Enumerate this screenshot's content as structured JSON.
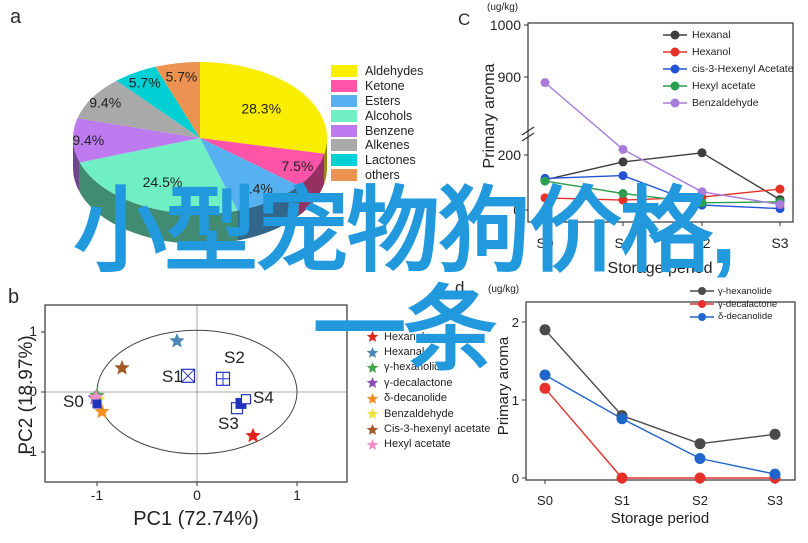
{
  "watermark": {
    "line1": "小型宠物狗价格,",
    "line2": "一条",
    "color": "#2299DD"
  },
  "panel_a": {
    "label": "a"
  },
  "panel_b": {
    "label": "b",
    "xlabel": "PC1 (72.74%)",
    "ylabel": "PC2 (18.97%)",
    "legend": [
      {
        "label": "Hexanol",
        "color": "#E0251B"
      },
      {
        "label": "Hexanal",
        "color": "#4A87B8"
      },
      {
        "label": "γ-hexanolide",
        "color": "#46A546"
      },
      {
        "label": "γ-decalactone",
        "color": "#8A4FB0"
      },
      {
        "label": "δ-decanolide",
        "color": "#F2901D"
      },
      {
        "label": "Benzaldehyde",
        "color": "#F2E33A"
      },
      {
        "label": "Cis-3-hexenyl acetate",
        "color": "#A05A28"
      },
      {
        "label": "Hexyl acetate",
        "color": "#F090C8"
      }
    ]
  },
  "panel_c": {
    "label": "C",
    "unit": "(ug/kg)",
    "ylabel": "Primary aroma",
    "xlabel": "Storage period"
  },
  "panel_d": {
    "label": "d",
    "unit": "(ug/kg)",
    "ylabel": "Primary aroma",
    "xlabel": "Storage period"
  },
  "chart_data": [
    {
      "panel": "a",
      "type": "pie",
      "slices": [
        {
          "label": "Aldehydes",
          "value": 28.3,
          "pct": "28.3%",
          "color": "#FAEE00",
          "label_r": 0.62
        },
        {
          "label": "Ketone",
          "value": 7.5,
          "pct": "7.5%",
          "color": "#FF54A7",
          "label_r": 0.85
        },
        {
          "label": "Esters",
          "value": 9.4,
          "pct": "9.4%",
          "color": "#57B1F0",
          "label_r": 0.8
        },
        {
          "label": "Alcohols",
          "value": 24.5,
          "pct": "24.5%",
          "color": "#6FEFC3",
          "label_r": 0.65
        },
        {
          "label": "Benzene",
          "value": 9.4,
          "pct": "9.4%",
          "color": "#BE7BF0",
          "label_r": 0.88
        },
        {
          "label": "Alkenes",
          "value": 9.4,
          "pct": "9.4%",
          "color": "#A9A9A9",
          "label_r": 0.88
        },
        {
          "label": "Lactones",
          "value": 5.7,
          "pct": "5.7%",
          "color": "#00CFD4",
          "label_r": 0.85
        },
        {
          "label": "others",
          "value": 5.7,
          "pct": "5.7%",
          "color": "#EC9351",
          "label_r": 0.82
        }
      ]
    },
    {
      "panel": "b",
      "type": "scatter",
      "xlabel": "PC1 (72.74%)",
      "ylabel": "PC2 (18.97%)",
      "xticks": [
        -1,
        0,
        1
      ],
      "yticks": [
        1,
        0,
        -1
      ],
      "ellipse": {
        "cx": 0,
        "cy": 0,
        "rx": 1.0,
        "ry": 1.03
      },
      "loadings": [
        {
          "name": "γ-decalactone",
          "x": -1.02,
          "y": -0.1,
          "color": "#8A4FB0"
        },
        {
          "name": "Benzaldehyde",
          "x": -0.99,
          "y": -0.13,
          "color": "#F2E33A"
        },
        {
          "name": "γ-hexanolide",
          "x": -1.0,
          "y": -0.06,
          "color": "#46A546"
        },
        {
          "name": "Hexyl acetate",
          "x": -1.01,
          "y": -0.09,
          "color": "#F090C8"
        },
        {
          "name": "Cis-3-hexenyl acetate",
          "x": -0.75,
          "y": 0.4,
          "color": "#A05A28"
        },
        {
          "name": "Hexanal",
          "x": -0.2,
          "y": 0.85,
          "color": "#4A87B8"
        },
        {
          "name": "δ-decanolide",
          "x": -0.95,
          "y": -0.33,
          "color": "#F2901D"
        },
        {
          "name": "Hexanol",
          "x": 0.56,
          "y": -0.73,
          "color": "#E0251B"
        }
      ],
      "scores": [
        {
          "x": -1.0,
          "y": -0.2,
          "style": "filled",
          "size": 9
        },
        {
          "x": -0.09,
          "y": 0.27,
          "style": "cross",
          "size": 13
        },
        {
          "x": 0.26,
          "y": 0.22,
          "style": "grid",
          "size": 13
        },
        {
          "x": 0.4,
          "y": -0.27,
          "style": "open",
          "size": 11
        },
        {
          "x": 0.44,
          "y": -0.19,
          "style": "filled",
          "size": 11
        },
        {
          "x": 0.49,
          "y": -0.12,
          "style": "open",
          "size": 9
        }
      ],
      "score_color": "#2233BB",
      "point_labels": [
        {
          "text": "S0",
          "x": -1.34,
          "y": -0.17
        },
        {
          "text": "S1",
          "x": -0.35,
          "y": 0.25
        },
        {
          "text": "S2",
          "x": 0.27,
          "y": 0.57
        },
        {
          "text": "S3",
          "x": 0.21,
          "y": -0.53
        },
        {
          "text": "S4",
          "x": 0.56,
          "y": -0.1
        }
      ]
    },
    {
      "panel": "c",
      "type": "line",
      "ylabel": "Primary aroma",
      "xlabel": "Storage period",
      "unit": "(ug/kg)",
      "categories": [
        "S0",
        "S1",
        "S2",
        "S3"
      ],
      "yticks": [
        0,
        200,
        900,
        1000
      ],
      "axis_break": true,
      "series": [
        {
          "name": "Hexanal",
          "color": "#3E3E3E",
          "values": [
            110,
            175,
            220,
            38
          ]
        },
        {
          "name": "Hexanol",
          "color": "#E53128",
          "values": [
            44,
            36,
            47,
            76
          ]
        },
        {
          "name": "cis-3-Hexenyl Acetate",
          "color": "#2353D4",
          "values": [
            115,
            125,
            18,
            5
          ]
        },
        {
          "name": "Hexyl acetate",
          "color": "#2B9E4F",
          "values": [
            105,
            60,
            26,
            30
          ]
        },
        {
          "name": "Benzaldehyde",
          "color": "#A97CDB",
          "values": [
            850,
            250,
            66,
            20
          ]
        }
      ]
    },
    {
      "panel": "d",
      "type": "line",
      "ylabel": "Primary aroma",
      "xlabel": "Storage period",
      "unit": "(ug/kg)",
      "categories": [
        "S0",
        "S1",
        "S2",
        "S3"
      ],
      "yticks": [
        0,
        1,
        2
      ],
      "axis_break": false,
      "series": [
        {
          "name": "γ-hexanolide",
          "color": "#4A4A4A",
          "values": [
            1.9,
            0.8,
            0.44,
            0.56
          ]
        },
        {
          "name": "γ-decalactone",
          "color": "#E5312B",
          "values": [
            1.15,
            0,
            0,
            0
          ]
        },
        {
          "name": "δ-decanolide",
          "color": "#2065C9",
          "values": [
            1.32,
            0.76,
            0.25,
            0.05
          ]
        }
      ]
    }
  ]
}
